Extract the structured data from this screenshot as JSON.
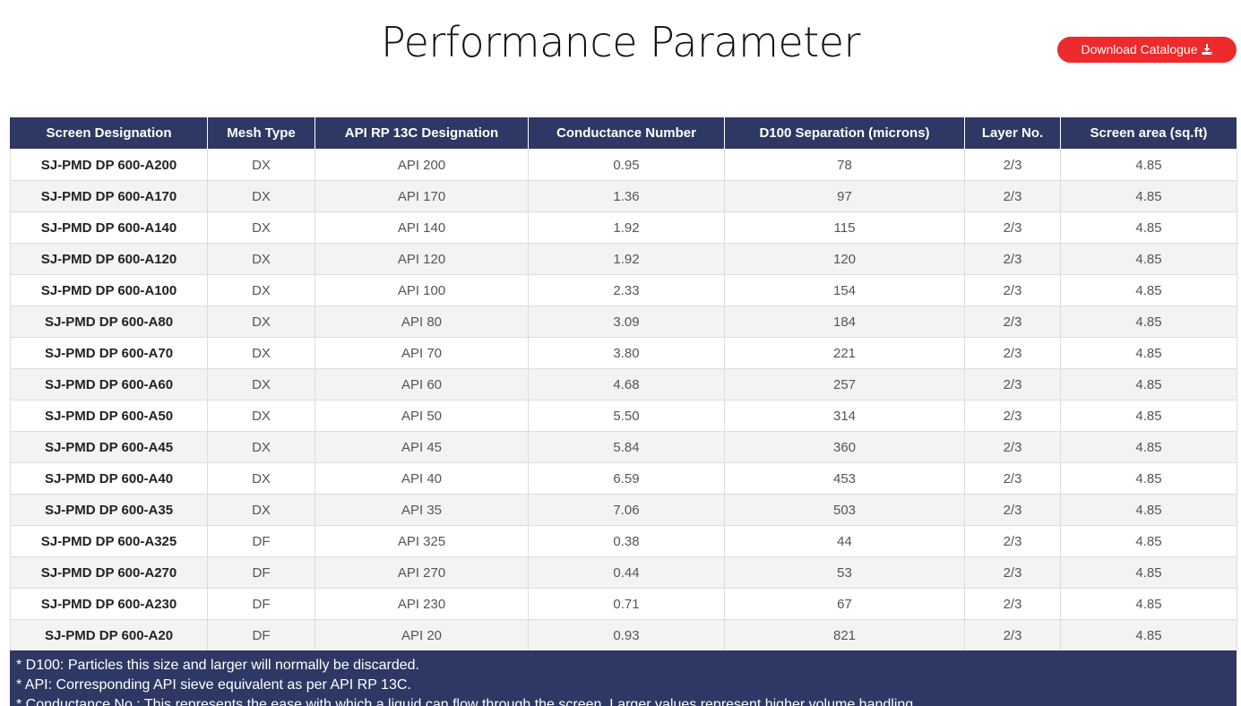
{
  "page": {
    "title": "Performance Parameter"
  },
  "download": {
    "label": "Download Catalogue",
    "icon": "download-icon"
  },
  "colors": {
    "header_bg": "#2e3864",
    "button_bg": "#ee2a2d",
    "row_alt": "#f3f3f3"
  },
  "table": {
    "headers": [
      "Screen Designation",
      "Mesh Type",
      "API RP 13C Designation",
      "Conductance Number",
      "D100 Separation (microns)",
      "Layer No.",
      "Screen area (sq.ft)"
    ],
    "rows": [
      [
        "SJ-PMD DP 600-A200",
        "DX",
        "API 200",
        "0.95",
        "78",
        "2/3",
        "4.85"
      ],
      [
        "SJ-PMD DP 600-A170",
        "DX",
        "API 170",
        "1.36",
        "97",
        "2/3",
        "4.85"
      ],
      [
        "SJ-PMD DP 600-A140",
        "DX",
        "API 140",
        "1.92",
        "115",
        "2/3",
        "4.85"
      ],
      [
        "SJ-PMD DP 600-A120",
        "DX",
        "API 120",
        "1.92",
        "120",
        "2/3",
        "4.85"
      ],
      [
        "SJ-PMD DP 600-A100",
        "DX",
        "API 100",
        "2.33",
        "154",
        "2/3",
        "4.85"
      ],
      [
        "SJ-PMD DP 600-A80",
        "DX",
        "API 80",
        "3.09",
        "184",
        "2/3",
        "4.85"
      ],
      [
        "SJ-PMD DP 600-A70",
        "DX",
        "API 70",
        "3.80",
        "221",
        "2/3",
        "4.85"
      ],
      [
        "SJ-PMD DP 600-A60",
        "DX",
        "API 60",
        "4.68",
        "257",
        "2/3",
        "4.85"
      ],
      [
        "SJ-PMD DP 600-A50",
        "DX",
        "API 50",
        "5.50",
        "314",
        "2/3",
        "4.85"
      ],
      [
        "SJ-PMD DP 600-A45",
        "DX",
        "API 45",
        "5.84",
        "360",
        "2/3",
        "4.85"
      ],
      [
        "SJ-PMD DP 600-A40",
        "DX",
        "API 40",
        "6.59",
        "453",
        "2/3",
        "4.85"
      ],
      [
        "SJ-PMD DP 600-A35",
        "DX",
        "API 35",
        "7.06",
        "503",
        "2/3",
        "4.85"
      ],
      [
        "SJ-PMD DP 600-A325",
        "DF",
        "API 325",
        "0.38",
        "44",
        "2/3",
        "4.85"
      ],
      [
        "SJ-PMD DP 600-A270",
        "DF",
        "API 270",
        "0.44",
        "53",
        "2/3",
        "4.85"
      ],
      [
        "SJ-PMD DP 600-A230",
        "DF",
        "API 230",
        "0.71",
        "67",
        "2/3",
        "4.85"
      ],
      [
        "SJ-PMD DP 600-A20",
        "DF",
        "API 20",
        "0.93",
        "821",
        "2/3",
        "4.85"
      ]
    ]
  },
  "notes": [
    "* D100: Particles this size and larger will normally be discarded.",
    "* API: Corresponding API sieve equivalent as per API RP 13C.",
    "* Conductance No.: This represents the ease with which a liquid can flow through the screen. Larger values represent higher volume handling."
  ]
}
